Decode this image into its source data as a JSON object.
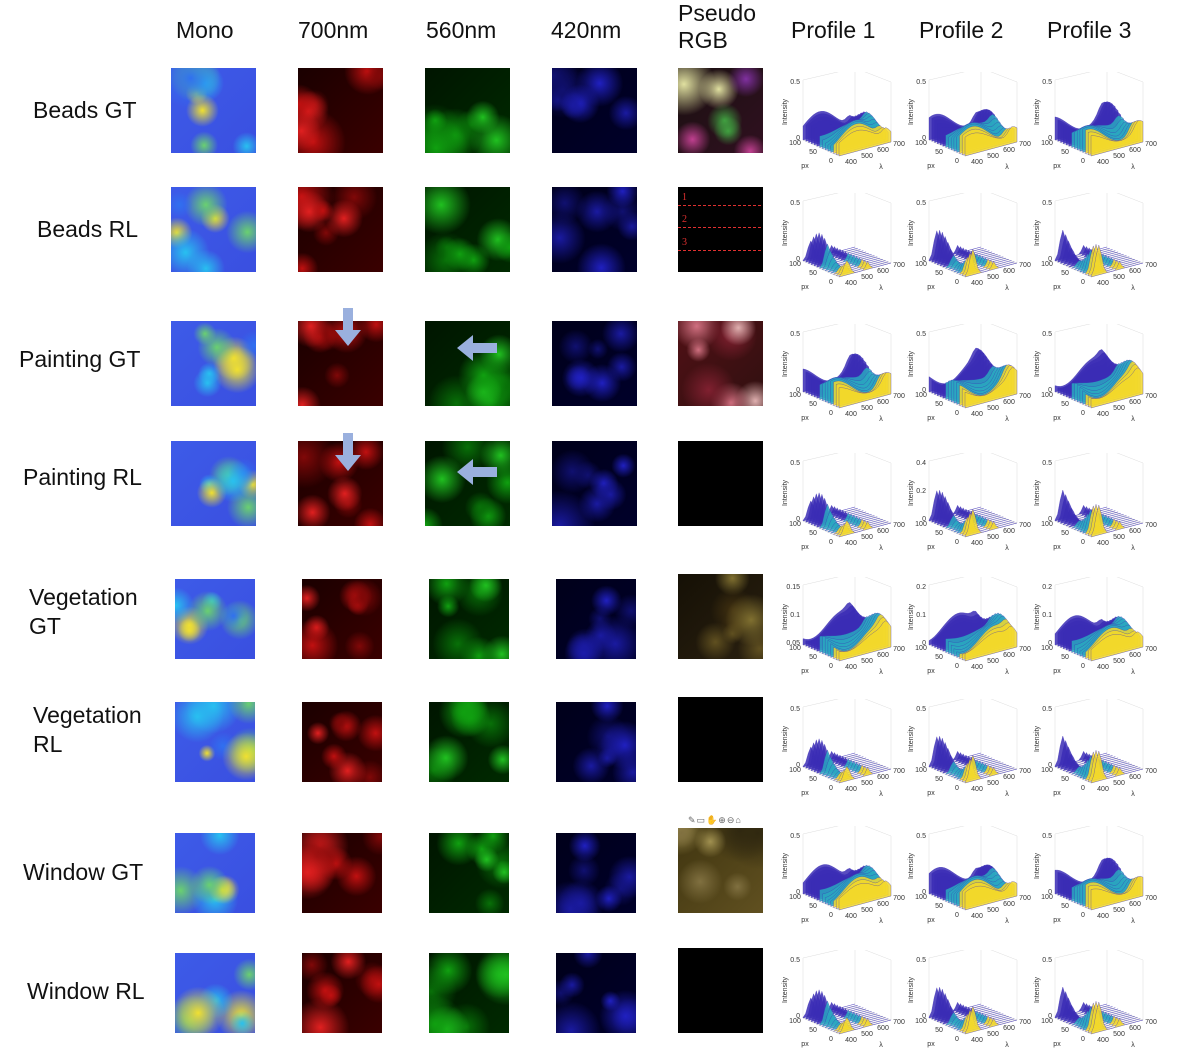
{
  "columns": [
    "Mono",
    "700nm",
    "560nm",
    "420nm",
    "Pseudo\nRGB",
    "Profile 1",
    "Profile 2",
    "Profile 3"
  ],
  "rows": [
    {
      "label": "Beads GT",
      "pseudo": "beads"
    },
    {
      "label": "Beads RL",
      "pseudo": "black"
    },
    {
      "label": "Painting GT",
      "pseudo": "painting"
    },
    {
      "label": "Painting RL",
      "pseudo": "black"
    },
    {
      "label": "Vegetation\nGT",
      "pseudo": "vegetation"
    },
    {
      "label": "Vegetation\nRL",
      "pseudo": "black"
    },
    {
      "label": "Window GT",
      "pseudo": "window"
    },
    {
      "label": "Window RL",
      "pseudo": "black"
    }
  ],
  "profile_markers": [
    "1",
    "2",
    "3"
  ],
  "plot_axes": {
    "zlabel": "Intensity",
    "xlabel": "px",
    "ylabel": "λ",
    "px_ticks": [
      "100",
      "50",
      "0"
    ],
    "lambda_ticks": [
      "400",
      "500",
      "600",
      "700"
    ]
  },
  "plot_z_ticks": [
    [
      [
        "0.5",
        "0"
      ],
      [
        "0.5",
        "0"
      ],
      [
        "0.5",
        "0"
      ]
    ],
    [
      [
        "0.5",
        "0"
      ],
      [
        "0.5",
        "0"
      ],
      [
        "0.5",
        "0"
      ]
    ],
    [
      [
        "0.5",
        "0"
      ],
      [
        "0.5",
        "0"
      ],
      [
        "0.5",
        "0"
      ]
    ],
    [
      [
        "0.5",
        "0"
      ],
      [
        "0.4",
        "0.2",
        "0"
      ],
      [
        "0.5",
        "0"
      ]
    ],
    [
      [
        "0.15",
        "0.1",
        "0.05"
      ],
      [
        "0.2",
        "0.1",
        "0"
      ],
      [
        "0.2",
        "0.1",
        "0"
      ]
    ],
    [
      [
        "0.5",
        "0"
      ],
      [
        "0.5",
        "0"
      ],
      [
        "0.5",
        "0"
      ]
    ],
    [
      [
        "0.5",
        "0"
      ],
      [
        "0.5",
        "0"
      ],
      [
        "0.5",
        "0"
      ]
    ],
    [
      [
        "0.5",
        "0"
      ],
      [
        "0.5",
        "0"
      ],
      [
        "0.5",
        "0"
      ]
    ]
  ],
  "colors": {
    "mono_bg": "#3a4fe0",
    "red_channel": "#c01010",
    "green_channel": "#10a010",
    "blue_channel": "#1a1aa0",
    "arrow": "#9ab0de",
    "marker": "#e03030",
    "surface_low": "#3b2db5",
    "surface_mid": "#2aa7c0",
    "surface_high": "#f2d82a"
  }
}
